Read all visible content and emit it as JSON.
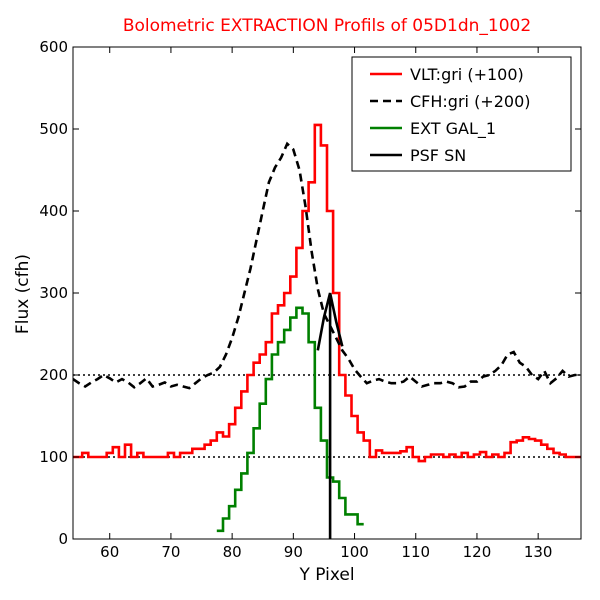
{
  "chart_data": {
    "type": "line",
    "title": "Bolometric EXTRACTION Profils of 05D1dn_1002",
    "title_color": "#ff0000",
    "xlabel": "Y Pixel",
    "ylabel": "Flux (cfh)",
    "xlim": [
      54,
      137
    ],
    "ylim": [
      0,
      600
    ],
    "xticks": [
      60,
      70,
      80,
      90,
      100,
      110,
      120,
      130
    ],
    "yticks": [
      0,
      100,
      200,
      300,
      400,
      500,
      600
    ],
    "grid": false,
    "legend_position": "top-right",
    "reference_lines": [
      {
        "y": 100,
        "style": "dotted",
        "color": "#000000"
      },
      {
        "y": 200,
        "style": "dotted",
        "color": "#000000"
      }
    ],
    "series": [
      {
        "name": "VLT:gri (+100)",
        "color": "#ff0000",
        "style": "steps",
        "x": [
          54,
          55,
          56,
          57,
          58,
          59,
          60,
          61,
          62,
          63,
          64,
          65,
          66,
          67,
          68,
          69,
          70,
          71,
          72,
          73,
          74,
          75,
          76,
          77,
          78,
          79,
          80,
          81,
          82,
          83,
          84,
          85,
          86,
          87,
          88,
          89,
          90,
          91,
          92,
          93,
          94,
          95,
          96,
          97,
          98,
          99,
          100,
          101,
          102,
          103,
          104,
          105,
          106,
          107,
          108,
          109,
          110,
          111,
          112,
          113,
          114,
          115,
          116,
          117,
          118,
          119,
          120,
          121,
          122,
          123,
          124,
          125,
          126,
          127,
          128,
          129,
          130,
          131,
          132,
          133,
          134,
          135,
          136,
          137
        ],
        "y": [
          100,
          100,
          105,
          100,
          100,
          100,
          105,
          112,
          100,
          115,
          100,
          105,
          100,
          100,
          100,
          100,
          105,
          100,
          105,
          105,
          110,
          110,
          115,
          120,
          130,
          125,
          140,
          160,
          180,
          200,
          215,
          225,
          240,
          275,
          285,
          300,
          320,
          355,
          400,
          435,
          505,
          480,
          400,
          300,
          200,
          175,
          150,
          130,
          120,
          100,
          108,
          105,
          105,
          105,
          107,
          112,
          100,
          95,
          100,
          103,
          103,
          100,
          103,
          100,
          105,
          100,
          103,
          106,
          100,
          103,
          100,
          105,
          118,
          120,
          124,
          122,
          120,
          115,
          110,
          105,
          103,
          100,
          100,
          100
        ]
      },
      {
        "name": "CFH:gri (+200)",
        "color": "#000000",
        "style": "dashed",
        "x": [
          54,
          55,
          56,
          57,
          58,
          59,
          60,
          61,
          62,
          63,
          64,
          65,
          66,
          67,
          68,
          69,
          70,
          71,
          72,
          73,
          74,
          75,
          76,
          77,
          78,
          79,
          80,
          81,
          82,
          83,
          84,
          85,
          86,
          87,
          88,
          89,
          90,
          91,
          92,
          93,
          94,
          95,
          96,
          97,
          98,
          99,
          100,
          101,
          102,
          103,
          104,
          105,
          106,
          107,
          108,
          109,
          110,
          111,
          112,
          113,
          114,
          115,
          116,
          117,
          118,
          119,
          120,
          121,
          122,
          123,
          124,
          125,
          126,
          127,
          128,
          129,
          130,
          131,
          132,
          133,
          134,
          135,
          136,
          137
        ],
        "y": [
          195,
          190,
          186,
          191,
          195,
          200,
          196,
          191,
          195,
          191,
          185,
          190,
          196,
          186,
          188,
          191,
          186,
          188,
          186,
          184,
          190,
          196,
          200,
          203,
          210,
          225,
          245,
          270,
          300,
          330,
          365,
          400,
          435,
          453,
          465,
          482,
          475,
          450,
          405,
          350,
          305,
          275,
          260,
          245,
          230,
          220,
          207,
          198,
          190,
          193,
          195,
          192,
          190,
          190,
          192,
          198,
          192,
          186,
          188,
          190,
          190,
          192,
          190,
          185,
          186,
          192,
          192,
          198,
          200,
          205,
          212,
          225,
          228,
          215,
          210,
          200,
          195,
          205,
          190,
          196,
          205,
          198,
          200,
          200
        ]
      },
      {
        "name": "EXT GAL_1",
        "color": "#008000",
        "style": "steps",
        "x": [
          78,
          79,
          80,
          81,
          82,
          83,
          84,
          85,
          86,
          87,
          88,
          89,
          90,
          91,
          92,
          93,
          94,
          95,
          96,
          97,
          98,
          99,
          100,
          101
        ],
        "y": [
          10,
          25,
          40,
          60,
          80,
          105,
          135,
          165,
          195,
          225,
          240,
          255,
          270,
          282,
          275,
          240,
          160,
          120,
          75,
          70,
          50,
          30,
          30,
          18
        ]
      },
      {
        "name": "PSF SN",
        "color": "#000000",
        "style": "solid",
        "x": [
          94,
          95,
          96,
          96,
          96,
          97,
          98
        ],
        "y": [
          230,
          270,
          300,
          0,
          300,
          265,
          235
        ]
      }
    ]
  }
}
